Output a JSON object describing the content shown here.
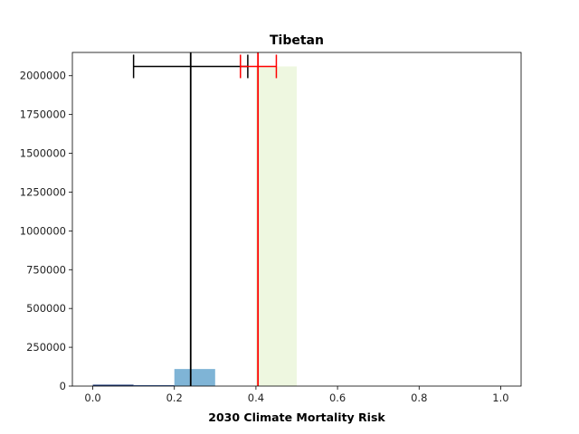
{
  "chart_data": {
    "type": "bar",
    "title": "Tibetan",
    "xlabel": "2030 Climate Mortality Risk",
    "ylabel": "",
    "xlim": [
      -0.05,
      1.05
    ],
    "ylim": [
      0,
      2150000
    ],
    "x_ticks": [
      0.0,
      0.2,
      0.4,
      0.6,
      0.8,
      1.0
    ],
    "x_tick_labels": [
      "0.0",
      "0.2",
      "0.4",
      "0.6",
      "0.8",
      "1.0"
    ],
    "y_ticks": [
      0,
      250000,
      500000,
      750000,
      1000000,
      1250000,
      1500000,
      1750000,
      2000000
    ],
    "y_tick_labels": [
      "0",
      "250000",
      "500000",
      "750000",
      "1000000",
      "1250000",
      "1500000",
      "1750000",
      "2000000"
    ],
    "bars": [
      {
        "x0": 0.0,
        "x1": 0.1,
        "value": 9000,
        "color": "#1f3a78"
      },
      {
        "x0": 0.1,
        "x1": 0.2,
        "value": 6000,
        "color": "#3d62a4"
      },
      {
        "x0": 0.2,
        "x1": 0.3,
        "value": 110000,
        "color": "#7fb4d6"
      },
      {
        "x0": 0.4,
        "x1": 0.5,
        "value": 2060000,
        "color": "#eef7e0"
      }
    ],
    "vertical_lines": [
      {
        "x": 0.24,
        "color": "#000000"
      },
      {
        "x": 0.405,
        "color": "#ff0000"
      }
    ],
    "error_bars": [
      {
        "center": 0.24,
        "low": 0.1,
        "high": 0.38,
        "y": 2060000,
        "color": "#000000"
      },
      {
        "center": 0.405,
        "low": 0.362,
        "high": 0.45,
        "y": 2060000,
        "color": "#ff0000"
      }
    ],
    "grid": false,
    "legend": "none"
  }
}
